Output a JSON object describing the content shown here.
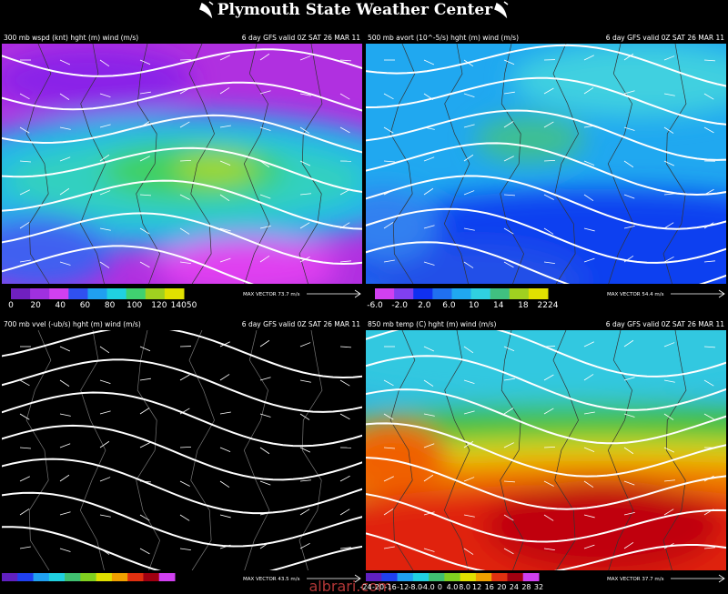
{
  "header": {
    "title": "Plymouth State Weather Center"
  },
  "panels": [
    {
      "field": "300 mb wspd (knt) hght (m) wind (m/s)",
      "run": "6 day GFS valid 0Z SAT 26 MAR 11",
      "scale": [
        "0",
        "20",
        "40",
        "60",
        "80",
        "100",
        "120",
        "14050"
      ],
      "max_vector": "MAX VECTOR 73.7 m/s"
    },
    {
      "field": "500 mb avort (10^-5/s) hght (m) wind (m/s)",
      "run": "6 day GFS valid 0Z SAT 26 MAR 11",
      "scale": [
        "-6.0",
        "-2.0",
        "2.0",
        "6.0",
        "10",
        "14",
        "18",
        "2224"
      ],
      "max_vector": "MAX VECTOR 54.4 m/s"
    },
    {
      "field": "700 mb vvel (-ub/s) hght (m) wind (m/s)",
      "run": "6 day GFS valid 0Z SAT 26 MAR 11",
      "scale": [],
      "max_vector": "MAX VECTOR 43.5 m/s"
    },
    {
      "field": "850 mb temp (C) hght (m) wind (m/s)",
      "run": "6 day GFS valid 0Z SAT 26 MAR 11",
      "scale": [
        "-24",
        "-20",
        "-16",
        "-12",
        "-8.0",
        "-4.0",
        "0",
        "4.0",
        "8.0",
        "12",
        "16",
        "20",
        "24",
        "28",
        "32"
      ],
      "max_vector": "MAX VECTOR 37.7 m/s"
    }
  ],
  "watermark": "albrari.com"
}
